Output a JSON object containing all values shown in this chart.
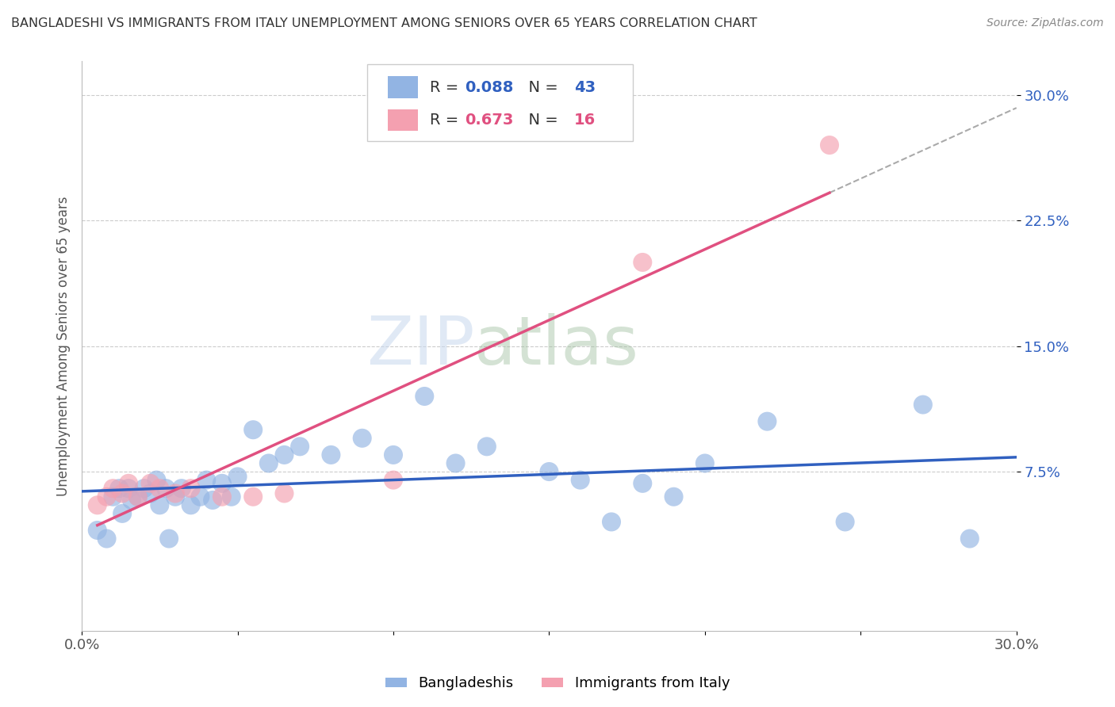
{
  "title": "BANGLADESHI VS IMMIGRANTS FROM ITALY UNEMPLOYMENT AMONG SENIORS OVER 65 YEARS CORRELATION CHART",
  "source": "Source: ZipAtlas.com",
  "ylabel": "Unemployment Among Seniors over 65 years",
  "xlim": [
    0.0,
    0.3
  ],
  "ylim": [
    -0.02,
    0.32
  ],
  "xticks": [
    0.0,
    0.05,
    0.1,
    0.15,
    0.2,
    0.25,
    0.3
  ],
  "xtick_labels": [
    "0.0%",
    "",
    "",
    "",
    "",
    "",
    "30.0%"
  ],
  "ytick_positions": [
    0.075,
    0.15,
    0.225,
    0.3
  ],
  "ytick_labels": [
    "7.5%",
    "15.0%",
    "22.5%",
    "30.0%"
  ],
  "legend_label1": "Bangladeshis",
  "legend_label2": "Immigrants from Italy",
  "R1": 0.088,
  "N1": 43,
  "R2": 0.673,
  "N2": 16,
  "color_bangladeshi": "#92B4E3",
  "color_italy": "#F4A0B0",
  "color_line_bangladeshi": "#3060C0",
  "color_line_italy": "#E05080",
  "background_color": "#FFFFFF",
  "grid_color": "#CCCCCC",
  "bangladeshi_x": [
    0.005,
    0.008,
    0.01,
    0.012,
    0.013,
    0.015,
    0.016,
    0.018,
    0.02,
    0.022,
    0.024,
    0.025,
    0.027,
    0.028,
    0.03,
    0.032,
    0.035,
    0.038,
    0.04,
    0.042,
    0.045,
    0.048,
    0.05,
    0.055,
    0.06,
    0.065,
    0.07,
    0.08,
    0.09,
    0.1,
    0.11,
    0.12,
    0.13,
    0.15,
    0.16,
    0.17,
    0.18,
    0.19,
    0.2,
    0.22,
    0.245,
    0.27,
    0.285
  ],
  "bangladeshi_y": [
    0.04,
    0.035,
    0.06,
    0.065,
    0.05,
    0.065,
    0.058,
    0.06,
    0.065,
    0.062,
    0.07,
    0.055,
    0.065,
    0.035,
    0.06,
    0.065,
    0.055,
    0.06,
    0.07,
    0.058,
    0.068,
    0.06,
    0.072,
    0.1,
    0.08,
    0.085,
    0.09,
    0.085,
    0.095,
    0.085,
    0.12,
    0.08,
    0.09,
    0.075,
    0.07,
    0.045,
    0.068,
    0.06,
    0.08,
    0.105,
    0.045,
    0.115,
    0.035
  ],
  "italy_x": [
    0.005,
    0.008,
    0.01,
    0.013,
    0.015,
    0.018,
    0.022,
    0.025,
    0.03,
    0.035,
    0.045,
    0.055,
    0.065,
    0.1,
    0.18,
    0.24
  ],
  "italy_y": [
    0.055,
    0.06,
    0.065,
    0.062,
    0.068,
    0.06,
    0.068,
    0.065,
    0.062,
    0.065,
    0.06,
    0.06,
    0.062,
    0.07,
    0.2,
    0.27
  ],
  "dashed_color": "#AAAAAA"
}
